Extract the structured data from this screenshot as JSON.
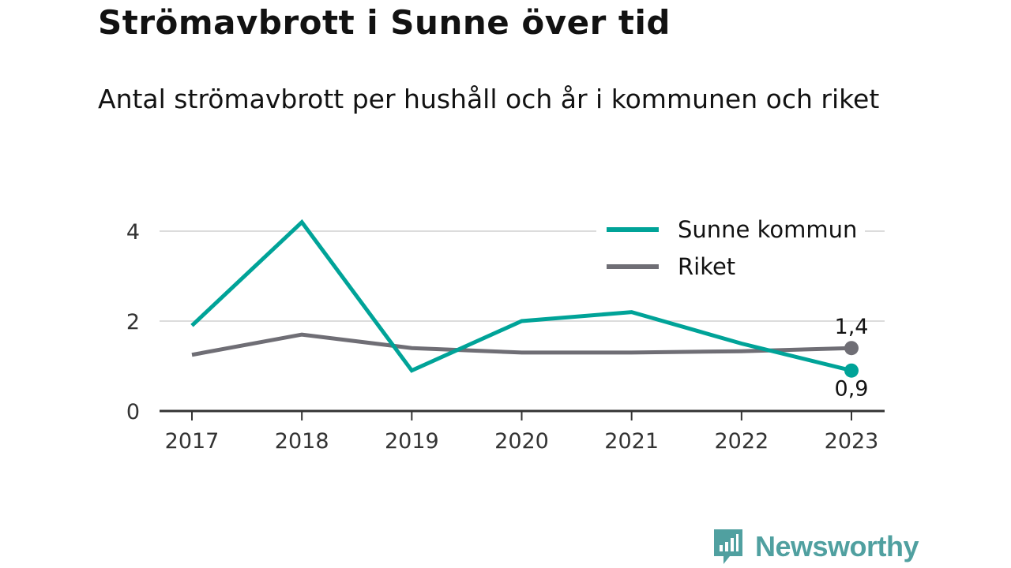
{
  "title": "Strömavbrott i Sunne över tid",
  "subtitle": "Antal strömavbrott per hushåll och år i kommunen och riket",
  "brand": {
    "name": "Newsworthy",
    "icon": "newsworthy-logo-icon",
    "color": "#50a0a0"
  },
  "chart_data": {
    "type": "line",
    "title": "Strömavbrott i Sunne över tid",
    "subtitle": "Antal strömavbrott per hushåll och år i kommunen och riket",
    "xlabel": "",
    "ylabel": "",
    "x": [
      "2017",
      "2018",
      "2019",
      "2020",
      "2021",
      "2022",
      "2023"
    ],
    "y_ticks": [
      "0",
      "2",
      "4"
    ],
    "ylim": [
      0,
      4
    ],
    "grid": true,
    "legend_position": "top-right",
    "series": [
      {
        "name": "Sunne kommun",
        "color": "#00a398",
        "values": [
          1.9,
          4.2,
          0.9,
          2.0,
          2.2,
          1.5,
          0.9
        ],
        "end_label": "0,9"
      },
      {
        "name": "Riket",
        "color": "#6f6e75",
        "values": [
          1.25,
          1.7,
          1.4,
          1.3,
          1.3,
          1.33,
          1.4
        ],
        "end_label": "1,4"
      }
    ]
  }
}
